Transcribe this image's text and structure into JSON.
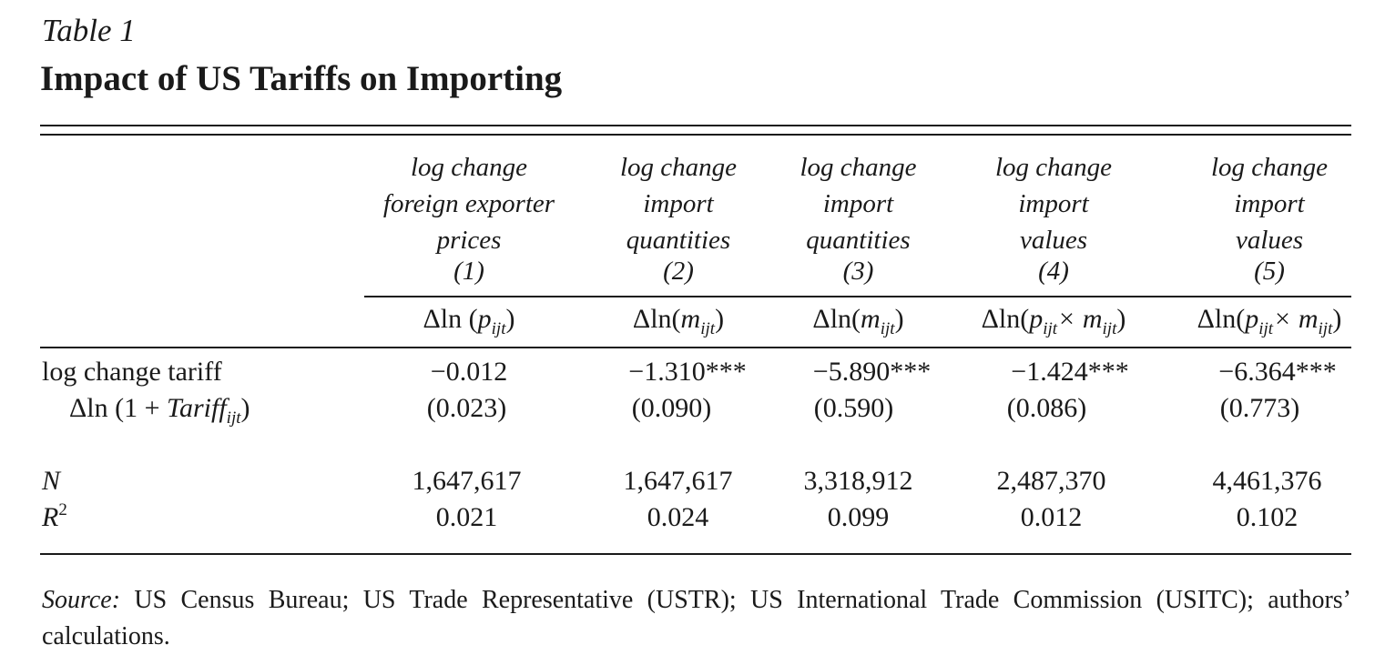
{
  "caption": "Table 1",
  "title": "Impact of US Tariffs on Importing",
  "columns": [
    {
      "line1": "log change",
      "line2": "foreign exporter",
      "line3": "prices",
      "num": "(1)",
      "eq_pre": "Δln (",
      "eq_var": "p",
      "eq_sub": "ijt",
      "eq_var2": "",
      "eq_sub2": "",
      "eq_post": ")"
    },
    {
      "line1": "log change",
      "line2": "import",
      "line3": "quantities",
      "num": "(2)",
      "eq_pre": "Δln(",
      "eq_var": "m",
      "eq_sub": "ijt",
      "eq_var2": "",
      "eq_sub2": "",
      "eq_post": ")"
    },
    {
      "line1": "log change",
      "line2": "import",
      "line3": "quantities",
      "num": "(3)",
      "eq_pre": "Δln(",
      "eq_var": "m",
      "eq_sub": "ijt",
      "eq_var2": "",
      "eq_sub2": "",
      "eq_post": ")"
    },
    {
      "line1": "log change",
      "line2": "import",
      "line3": "values",
      "num": "(4)",
      "eq_pre": "Δln(",
      "eq_var": "p",
      "eq_sub": "ijt",
      "eq_var2": "× m",
      "eq_sub2": "ijt",
      "eq_post": ")"
    },
    {
      "line1": "log change",
      "line2": "import",
      "line3": "values",
      "num": "(5)",
      "eq_pre": "Δln(",
      "eq_var": "p",
      "eq_sub": "ijt",
      "eq_var2": "× m",
      "eq_sub2": "ijt",
      "eq_post": ")"
    }
  ],
  "rows": {
    "tariff_label": "log change tariff",
    "tariff_eq_pre": "Δln (1 + ",
    "tariff_eq_var": "Tariff",
    "tariff_eq_sub": "ijt",
    "tariff_eq_post": ")",
    "coefficients": [
      "−0.012",
      "−1.310***",
      "−5.890***",
      "−1.424***",
      "−6.364***"
    ],
    "std_errors": [
      "(0.023)",
      "(0.090)",
      "(0.590)",
      "(0.086)",
      "(0.773)"
    ],
    "n_label": "N",
    "n_values": [
      "1,647,617",
      "1,647,617",
      "3,318,912",
      "2,487,370",
      "4,461,376"
    ],
    "r2_label": "R",
    "r2_sup": "2",
    "r2_values": [
      "0.021",
      "0.024",
      "0.099",
      "0.012",
      "0.102"
    ]
  },
  "source": {
    "label": "Source:",
    "text": " US Census Bureau; US Trade Representative (USTR); US International Trade Commission (USITC); authors’ calculations."
  }
}
